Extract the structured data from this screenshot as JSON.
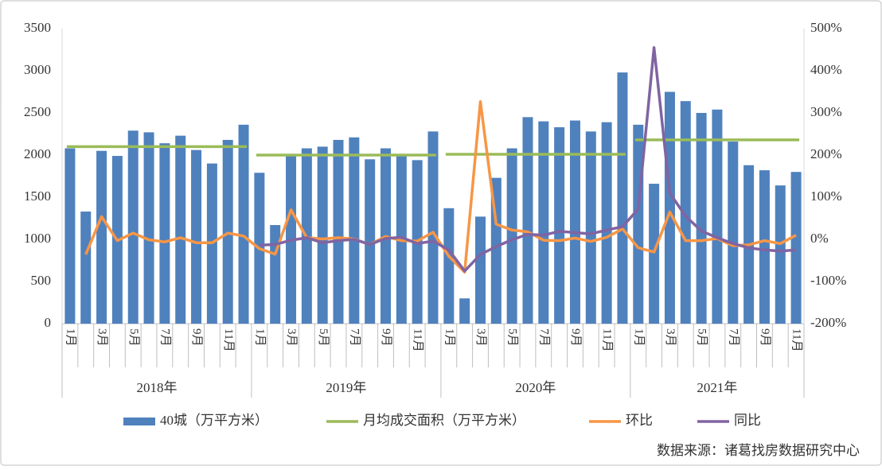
{
  "chart_data": {
    "type": "bar-line",
    "groups": [
      {
        "label": "2018年",
        "categories": [
          "1月",
          null,
          "3月",
          null,
          "5月",
          null,
          "7月",
          null,
          "9月",
          null,
          "11月",
          null
        ]
      },
      {
        "label": "2019年",
        "categories": [
          "1月",
          null,
          "3月",
          null,
          "5月",
          null,
          "7月",
          null,
          "9月",
          null,
          "11月",
          null
        ]
      },
      {
        "label": "2020年",
        "categories": [
          "1月",
          null,
          "3月",
          null,
          "5月",
          null,
          "7月",
          null,
          "9月",
          null,
          "11月",
          null
        ]
      },
      {
        "label": "2021年",
        "categories": [
          "1月",
          null,
          "3月",
          null,
          "5月",
          null,
          "7月",
          null,
          "9月",
          null,
          "11月"
        ]
      }
    ],
    "series": [
      {
        "name": "40城（万平方米）",
        "type": "bar",
        "color": "#4f81bd",
        "values": [
          2080,
          1330,
          2050,
          1990,
          2290,
          2270,
          2140,
          2230,
          2060,
          1900,
          2180,
          2360,
          1790,
          1170,
          1990,
          2080,
          2100,
          2180,
          2210,
          1950,
          2080,
          2010,
          1940,
          2280,
          1370,
          300,
          1270,
          1730,
          2080,
          2450,
          2400,
          2330,
          2410,
          2280,
          2390,
          2980,
          2360,
          1660,
          2750,
          2640,
          2500,
          2540,
          2160,
          1880,
          1820,
          1640,
          1800
        ]
      },
      {
        "name": "月均成交面积（万平方米）",
        "type": "group-line",
        "color": "#9bbb59",
        "values": [
          2100,
          2000,
          2010,
          2180
        ]
      },
      {
        "name": "环比",
        "type": "line",
        "axis": "y2",
        "color": "#f79646",
        "values": [
          null,
          -36,
          54,
          -3,
          15,
          -1,
          -6,
          4,
          -8,
          -8,
          15,
          8,
          -22,
          -35,
          70,
          4,
          1,
          4,
          1,
          -12,
          7,
          -3,
          -4,
          17,
          -40,
          -78,
          327,
          36,
          22,
          18,
          -2,
          -3,
          3,
          -5,
          5,
          25,
          -20,
          -30,
          65,
          -3,
          -3,
          2,
          -15,
          -13,
          -3,
          -10,
          10
        ]
      },
      {
        "name": "同比",
        "type": "line",
        "axis": "y2",
        "color": "#8064a2",
        "values": [
          null,
          null,
          null,
          null,
          null,
          null,
          null,
          null,
          null,
          null,
          null,
          null,
          -14,
          -12,
          -2,
          4,
          -8,
          -3,
          0,
          -12,
          2,
          5,
          -10,
          -4,
          -25,
          -75,
          -36,
          -17,
          -1,
          12,
          10,
          19,
          16,
          13,
          22,
          30,
          72,
          455,
          110,
          55,
          20,
          4,
          -10,
          -20,
          -25,
          -28,
          -25
        ]
      }
    ],
    "ylim": [
      0,
      3500
    ],
    "yticks": [
      0,
      500,
      1000,
      1500,
      2000,
      2500,
      3000,
      3500
    ],
    "y2lim": [
      -200,
      500
    ],
    "y2ticks": [
      {
        "value": -200,
        "label": "-200%"
      },
      {
        "value": -100,
        "label": "-100%"
      },
      {
        "value": 0,
        "label": "0%"
      },
      {
        "value": 100,
        "label": "100%"
      },
      {
        "value": 200,
        "label": "200%"
      },
      {
        "value": 300,
        "label": "300%"
      },
      {
        "value": 400,
        "label": "400%"
      },
      {
        "value": 500,
        "label": "500%"
      }
    ],
    "legend": "bottom",
    "source": "数据来源：诸葛找房数据研究中心"
  }
}
